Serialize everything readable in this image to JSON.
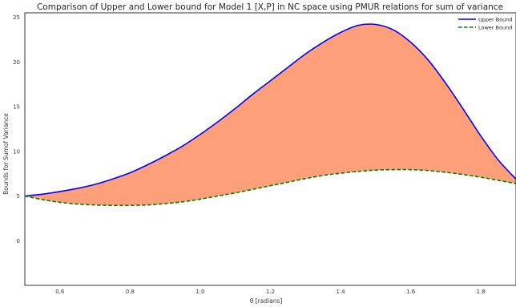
{
  "chart_data": {
    "type": "area",
    "title": "Comparison of Upper and Lower bound for Model 1 [X,P] in NC space using PMUR relations for sum of variance",
    "xlabel": "θ [radians]",
    "ylabel": "Bounds for Sumof Variance",
    "xlim": [
      0.5,
      1.9
    ],
    "ylim": [
      -5,
      25.5
    ],
    "xticks": [
      "0.6",
      "0.8",
      "1.0",
      "1.2",
      "1.4",
      "1.6",
      "1.8"
    ],
    "yticks": [
      "0",
      "5",
      "10",
      "15",
      "20",
      "25"
    ],
    "grid": false,
    "legend_position": "top-right",
    "fill_between": {
      "color": "#ffa07a",
      "from_series": "Upper Bound",
      "to_series": "Lower Bound"
    },
    "x": [
      0.5,
      0.55,
      0.6,
      0.65,
      0.7,
      0.75,
      0.8,
      0.85,
      0.9,
      0.95,
      1.0,
      1.05,
      1.1,
      1.15,
      1.2,
      1.25,
      1.3,
      1.35,
      1.4,
      1.45,
      1.5,
      1.55,
      1.6,
      1.65,
      1.7,
      1.75,
      1.8,
      1.85,
      1.9
    ],
    "series": [
      {
        "name": "Upper Bound",
        "color": "#0000ff",
        "style": "solid",
        "values": [
          5.0,
          5.2,
          5.5,
          5.85,
          6.3,
          6.9,
          7.6,
          8.5,
          9.5,
          10.6,
          11.9,
          13.3,
          14.8,
          16.4,
          17.9,
          19.4,
          20.9,
          22.2,
          23.3,
          24.1,
          24.2,
          23.6,
          22.2,
          20.2,
          17.6,
          14.7,
          11.7,
          9.0,
          6.9
        ]
      },
      {
        "name": "Lower Bound",
        "color": "#008000",
        "style": "dashed",
        "values": [
          5.0,
          4.6,
          4.3,
          4.1,
          4.0,
          3.95,
          3.95,
          4.0,
          4.15,
          4.35,
          4.65,
          5.0,
          5.35,
          5.75,
          6.15,
          6.55,
          6.95,
          7.3,
          7.55,
          7.75,
          7.9,
          7.95,
          7.95,
          7.85,
          7.65,
          7.4,
          7.1,
          6.75,
          6.4
        ]
      }
    ]
  }
}
